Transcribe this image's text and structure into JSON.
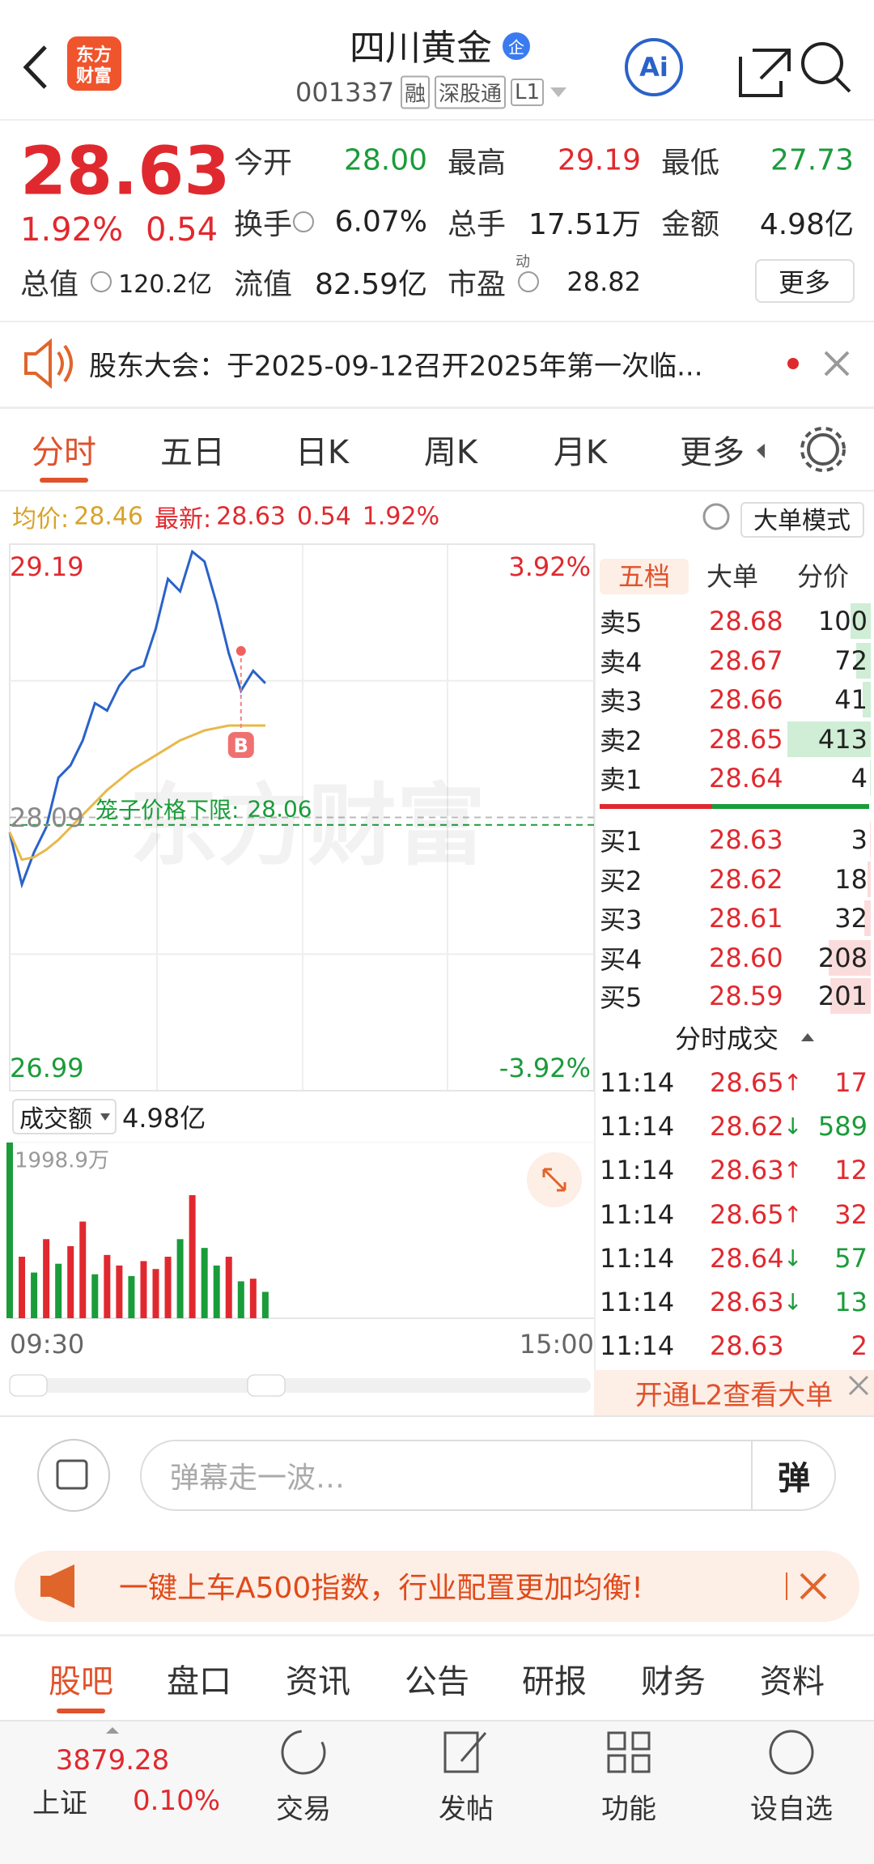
{
  "header": {
    "logo": [
      "东方",
      "财富"
    ],
    "title": "四川黄金",
    "badge": "企",
    "code": "001337",
    "tags": [
      "融",
      "深股通",
      "L1"
    ],
    "ai": "Ai"
  },
  "quote": {
    "price": "28.63",
    "change_pct": "1.92%",
    "change": "0.54",
    "total_value": {
      "label": "总值",
      "value": "120.2亿",
      "info": true
    },
    "stats": [
      {
        "label": "今开",
        "value": "28.00",
        "color": "#1a9c3a"
      },
      {
        "label": "最高",
        "value": "29.19",
        "color": "#e0292f"
      },
      {
        "label": "最低",
        "value": "27.73",
        "color": "#1a9c3a"
      },
      {
        "label": "换手",
        "value": "6.07%",
        "info": true
      },
      {
        "label": "总手",
        "value": "17.51万"
      },
      {
        "label": "金额",
        "value": "4.98亿"
      },
      {
        "label": "流值",
        "value": "82.59亿"
      },
      {
        "label": "市盈",
        "sup": "动",
        "value": "28.82",
        "info": true
      }
    ],
    "more": "更多"
  },
  "notice": "股东大会：于2025-09-12召开2025年第一次临...",
  "tabs": [
    "分时",
    "五日",
    "日K",
    "周K",
    "月K",
    "更多"
  ],
  "info": {
    "avg_label": "均价:",
    "avg": "28.46",
    "latest_label": "最新:",
    "latest": "28.63",
    "change": "0.54",
    "change_pct": "1.92%",
    "mode": "大单模式"
  },
  "chart_data": [
    {
      "type": "line",
      "x": [
        "09:30",
        "09:35",
        "09:40",
        "09:45",
        "09:50",
        "09:55",
        "10:00",
        "10:05",
        "10:10",
        "10:15",
        "10:20",
        "10:25",
        "10:30",
        "10:35",
        "10:40",
        "10:45",
        "10:50",
        "10:55",
        "11:00",
        "11:05",
        "11:10",
        "11:15"
      ],
      "xlim": [
        "09:30",
        "15:00"
      ],
      "xticks": [
        "09:30",
        "15:00"
      ],
      "ylim": [
        26.99,
        29.19
      ],
      "yticks": [
        29.19,
        28.09,
        26.99
      ],
      "y2lim": [
        -3.92,
        3.92
      ],
      "y2ticks": [
        {
          "value": 3.92,
          "label": "3.92%"
        },
        {
          "value": -3.92,
          "label": "-3.92%"
        }
      ],
      "series": [
        {
          "color": "#2a62c9",
          "values": [
            28.03,
            27.82,
            27.95,
            28.05,
            28.25,
            28.3,
            28.4,
            28.55,
            28.52,
            28.62,
            28.68,
            28.7,
            28.85,
            29.05,
            29.0,
            29.16,
            29.12,
            28.95,
            28.75,
            28.6,
            28.68,
            28.63
          ]
        },
        {
          "color": "#e8b84a",
          "values": [
            28.03,
            27.92,
            27.93,
            27.96,
            28.0,
            28.05,
            28.1,
            28.15,
            28.2,
            28.24,
            28.28,
            28.31,
            28.34,
            28.37,
            28.4,
            28.42,
            28.44,
            28.45,
            28.46,
            28.46,
            28.46,
            28.46
          ]
        }
      ],
      "annotation": {
        "text": "笼子价格下限:",
        "value": 28.06,
        "color": "#1a9c3a"
      },
      "marker": {
        "label": "B",
        "x": "11:05",
        "value": 28.76
      },
      "watermark": "东方财富",
      "grid": true
    },
    {
      "type": "bar",
      "title": "成交额",
      "total": "4.98亿",
      "x": [
        "09:30",
        "09:35",
        "09:40",
        "09:45",
        "09:50",
        "09:55",
        "10:00",
        "10:05",
        "10:10",
        "10:15",
        "10:20",
        "10:25",
        "10:30",
        "10:35",
        "10:40",
        "10:45",
        "10:50",
        "10:55",
        "11:00",
        "11:05",
        "11:10",
        "11:15"
      ],
      "values": [
        1998.9,
        700,
        520,
        900,
        620,
        820,
        1100,
        500,
        720,
        600,
        480,
        650,
        560,
        700,
        900,
        1400,
        800,
        600,
        700,
        420,
        450,
        300
      ],
      "colors": [
        "#1a9c3a",
        "#e0292f",
        "#1a9c3a",
        "#e0292f",
        "#1a9c3a",
        "#e0292f",
        "#e0292f",
        "#1a9c3a",
        "#e0292f",
        "#e0292f",
        "#1a9c3a",
        "#e0292f",
        "#e0292f",
        "#e0292f",
        "#1a9c3a",
        "#e0292f",
        "#1a9c3a",
        "#1a9c3a",
        "#e0292f",
        "#1a9c3a",
        "#e0292f",
        "#1a9c3a"
      ],
      "ylim": [
        0,
        1998.9
      ],
      "yticks": [
        {
          "value": 1998.9,
          "label": "1998.9万"
        }
      ]
    }
  ],
  "order_book": {
    "tabs": [
      "五档",
      "大单",
      "分价"
    ],
    "sell": [
      {
        "label": "卖5",
        "price": "28.68",
        "volume": 100
      },
      {
        "label": "卖4",
        "price": "28.67",
        "volume": 72
      },
      {
        "label": "卖3",
        "price": "28.66",
        "volume": 41
      },
      {
        "label": "卖2",
        "price": "28.65",
        "volume": 413
      },
      {
        "label": "卖1",
        "price": "28.64",
        "volume": 4
      }
    ],
    "buy": [
      {
        "label": "买1",
        "price": "28.63",
        "volume": 3
      },
      {
        "label": "买2",
        "price": "28.62",
        "volume": 18
      },
      {
        "label": "买3",
        "price": "28.61",
        "volume": 32
      },
      {
        "label": "买4",
        "price": "28.60",
        "volume": 208
      },
      {
        "label": "买5",
        "price": "28.59",
        "volume": 201
      }
    ]
  },
  "trades": {
    "title": "分时成交",
    "rows": [
      {
        "time": "11:14",
        "price": "28.65",
        "dir": "↑",
        "volume": 17
      },
      {
        "time": "11:14",
        "price": "28.62",
        "dir": "↓",
        "volume": 589
      },
      {
        "time": "11:14",
        "price": "28.63",
        "dir": "↑",
        "volume": 12
      },
      {
        "time": "11:14",
        "price": "28.65",
        "dir": "↑",
        "volume": 32
      },
      {
        "time": "11:14",
        "price": "28.64",
        "dir": "↓",
        "volume": 57
      },
      {
        "time": "11:14",
        "price": "28.63",
        "dir": "↓",
        "volume": 13
      },
      {
        "time": "11:14",
        "price": "28.63",
        "volume": 2
      }
    ]
  },
  "l2_banner": "开通L2查看大单",
  "comment": {
    "placeholder": "弹幕走一波…",
    "button": "弹"
  },
  "ad": "一键上车A500指数，行业配置更加均衡!",
  "bottom_tabs": [
    "股吧",
    "盘口",
    "资讯",
    "公告",
    "研报",
    "财务",
    "资料"
  ],
  "index": {
    "value": "3879.28",
    "name": "上证",
    "change_pct": "0.10%"
  },
  "nav": [
    "交易",
    "发帖",
    "功能",
    "设自选"
  ]
}
